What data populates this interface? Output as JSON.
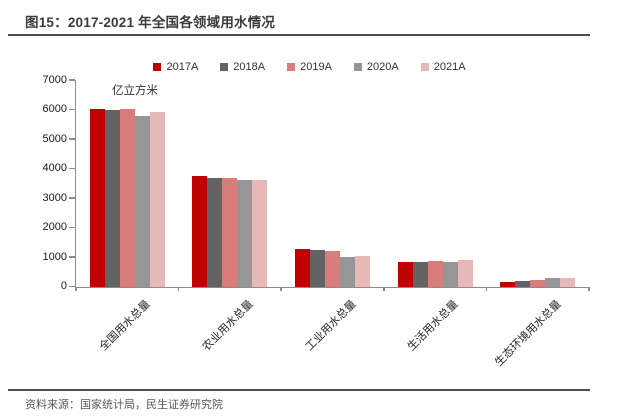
{
  "page": {
    "title": "图15：2017-2021 年全国各领域用水情况",
    "source": "资料来源：国家统计局，民生证券研究院"
  },
  "chart_data": {
    "type": "bar",
    "title": "图15：2017-2021 年全国各领域用水情况",
    "unit_label": "亿立方米",
    "categories": [
      "全国用水总量",
      "农业用水总量",
      "工业用水总量",
      "生活用水总量",
      "生态环境用水总量"
    ],
    "series": [
      {
        "name": "2017A",
        "color": "#c00000",
        "values": [
          6043.4,
          3766.4,
          1277.0,
          838.1,
          161.9
        ]
      },
      {
        "name": "2018A",
        "color": "#636363",
        "values": [
          6015.5,
          3693.1,
          1261.6,
          859.9,
          200.9
        ]
      },
      {
        "name": "2019A",
        "color": "#d97c7c",
        "values": [
          6021.2,
          3682.3,
          1217.6,
          871.7,
          249.6
        ]
      },
      {
        "name": "2020A",
        "color": "#969696",
        "values": [
          5812.9,
          3612.4,
          1030.4,
          863.1,
          307.0
        ]
      },
      {
        "name": "2021A",
        "color": "#e7b8b8",
        "values": [
          5920.2,
          3644.3,
          1049.6,
          909.4,
          316.9
        ]
      }
    ],
    "ylim": [
      0,
      7000
    ],
    "ytick_step": 1000,
    "legend_position": "top",
    "grid": false
  }
}
